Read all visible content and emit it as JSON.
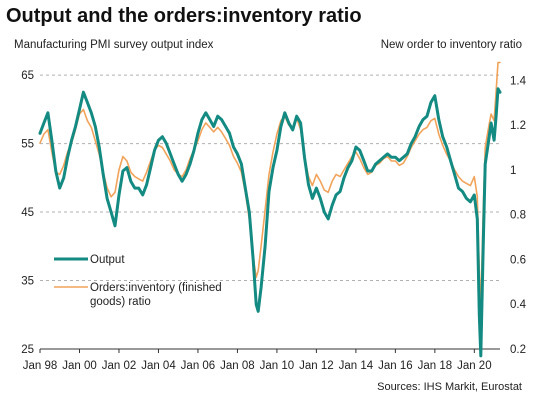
{
  "chart_data": {
    "type": "line",
    "title": "Output and the orders:inventory ratio",
    "ylabel_left": "Manufacturing PMI survey output index",
    "ylabel_right": "New order to inventory ratio",
    "source": "Sources: IHS Markit, Eurostat",
    "ylim_left": [
      25,
      67.5
    ],
    "ylim_right": [
      0.2,
      1.5
    ],
    "yticks_left": [
      "25",
      "35",
      "45",
      "55",
      "65"
    ],
    "yticks_right": [
      "0.2",
      "0.4",
      "0.6",
      "0.8",
      "1",
      "1.2",
      "1.4"
    ],
    "xlim": [
      1998.0,
      2021.3
    ],
    "xticks": [
      {
        "x": 1998,
        "label": "Jan 98"
      },
      {
        "x": 2000,
        "label": "Jan 00"
      },
      {
        "x": 2002,
        "label": "Jan 02"
      },
      {
        "x": 2004,
        "label": "Jan 04"
      },
      {
        "x": 2006,
        "label": "Jan 06"
      },
      {
        "x": 2008,
        "label": "Jan 08"
      },
      {
        "x": 2010,
        "label": "Jan 10"
      },
      {
        "x": 2012,
        "label": "Jan 12"
      },
      {
        "x": 2014,
        "label": "Jan 14"
      },
      {
        "x": 2016,
        "label": "Jan 16"
      },
      {
        "x": 2018,
        "label": "Jan 18"
      },
      {
        "x": 2020,
        "label": "Jan 20"
      }
    ],
    "grid": true,
    "legend": "left",
    "series": [
      {
        "name": "Output",
        "axis": "left",
        "color": "#138a82",
        "points": [
          [
            1998.0,
            56.5
          ],
          [
            1998.2,
            58.0
          ],
          [
            1998.4,
            59.5
          ],
          [
            1998.6,
            55.5
          ],
          [
            1998.8,
            51.0
          ],
          [
            1999.0,
            48.5
          ],
          [
            1999.2,
            50.0
          ],
          [
            1999.4,
            53.0
          ],
          [
            1999.6,
            55.5
          ],
          [
            1999.8,
            57.5
          ],
          [
            2000.0,
            60.0
          ],
          [
            2000.2,
            62.5
          ],
          [
            2000.4,
            61.0
          ],
          [
            2000.6,
            59.5
          ],
          [
            2000.8,
            57.5
          ],
          [
            2001.0,
            54.5
          ],
          [
            2001.2,
            50.5
          ],
          [
            2001.4,
            47.0
          ],
          [
            2001.6,
            45.0
          ],
          [
            2001.8,
            43.0
          ],
          [
            2002.0,
            47.5
          ],
          [
            2002.2,
            51.0
          ],
          [
            2002.4,
            51.5
          ],
          [
            2002.6,
            49.5
          ],
          [
            2002.8,
            48.5
          ],
          [
            2003.0,
            48.5
          ],
          [
            2003.2,
            47.5
          ],
          [
            2003.4,
            49.0
          ],
          [
            2003.6,
            51.5
          ],
          [
            2003.8,
            54.0
          ],
          [
            2004.0,
            55.5
          ],
          [
            2004.2,
            56.0
          ],
          [
            2004.4,
            55.0
          ],
          [
            2004.6,
            53.5
          ],
          [
            2004.8,
            52.0
          ],
          [
            2005.0,
            50.5
          ],
          [
            2005.2,
            49.5
          ],
          [
            2005.4,
            50.5
          ],
          [
            2005.6,
            52.0
          ],
          [
            2005.8,
            54.0
          ],
          [
            2006.0,
            56.5
          ],
          [
            2006.2,
            58.5
          ],
          [
            2006.4,
            59.5
          ],
          [
            2006.6,
            58.5
          ],
          [
            2006.8,
            57.5
          ],
          [
            2007.0,
            59.0
          ],
          [
            2007.2,
            58.5
          ],
          [
            2007.4,
            57.5
          ],
          [
            2007.6,
            56.5
          ],
          [
            2007.8,
            54.5
          ],
          [
            2008.0,
            53.5
          ],
          [
            2008.2,
            52.0
          ],
          [
            2008.4,
            48.5
          ],
          [
            2008.6,
            45.0
          ],
          [
            2008.8,
            38.0
          ],
          [
            2008.95,
            31.5
          ],
          [
            2009.05,
            30.5
          ],
          [
            2009.2,
            34.0
          ],
          [
            2009.4,
            40.0
          ],
          [
            2009.6,
            48.0
          ],
          [
            2009.8,
            51.5
          ],
          [
            2010.0,
            54.0
          ],
          [
            2010.2,
            57.5
          ],
          [
            2010.4,
            59.5
          ],
          [
            2010.6,
            58.0
          ],
          [
            2010.8,
            57.0
          ],
          [
            2011.0,
            59.0
          ],
          [
            2011.2,
            58.0
          ],
          [
            2011.4,
            53.0
          ],
          [
            2011.6,
            49.0
          ],
          [
            2011.8,
            47.0
          ],
          [
            2012.0,
            48.5
          ],
          [
            2012.2,
            47.0
          ],
          [
            2012.4,
            45.0
          ],
          [
            2012.6,
            44.0
          ],
          [
            2012.8,
            46.0
          ],
          [
            2013.0,
            47.5
          ],
          [
            2013.2,
            48.0
          ],
          [
            2013.4,
            50.0
          ],
          [
            2013.6,
            51.5
          ],
          [
            2013.8,
            52.5
          ],
          [
            2014.0,
            54.5
          ],
          [
            2014.2,
            54.0
          ],
          [
            2014.4,
            52.5
          ],
          [
            2014.6,
            51.0
          ],
          [
            2014.8,
            51.0
          ],
          [
            2015.0,
            52.0
          ],
          [
            2015.2,
            52.5
          ],
          [
            2015.4,
            53.0
          ],
          [
            2015.6,
            53.5
          ],
          [
            2015.8,
            53.0
          ],
          [
            2016.0,
            53.0
          ],
          [
            2016.2,
            52.5
          ],
          [
            2016.4,
            53.0
          ],
          [
            2016.6,
            53.5
          ],
          [
            2016.8,
            55.0
          ],
          [
            2017.0,
            56.0
          ],
          [
            2017.2,
            57.5
          ],
          [
            2017.4,
            58.5
          ],
          [
            2017.6,
            59.0
          ],
          [
            2017.8,
            61.0
          ],
          [
            2018.0,
            62.0
          ],
          [
            2018.2,
            58.5
          ],
          [
            2018.4,
            56.0
          ],
          [
            2018.6,
            54.5
          ],
          [
            2018.8,
            52.5
          ],
          [
            2019.0,
            50.5
          ],
          [
            2019.2,
            48.5
          ],
          [
            2019.4,
            48.0
          ],
          [
            2019.6,
            47.0
          ],
          [
            2019.8,
            46.5
          ],
          [
            2020.0,
            47.5
          ],
          [
            2020.15,
            44.0
          ],
          [
            2020.25,
            30.0
          ],
          [
            2020.33,
            24.0
          ],
          [
            2020.45,
            40.0
          ],
          [
            2020.55,
            52.0
          ],
          [
            2020.7,
            55.0
          ],
          [
            2020.85,
            58.0
          ],
          [
            2021.0,
            55.5
          ],
          [
            2021.1,
            59.0
          ],
          [
            2021.2,
            63.0
          ],
          [
            2021.3,
            62.5
          ]
        ]
      },
      {
        "name": "Orders:inventory (finished goods) ratio",
        "axis": "right",
        "color": "#f2a35a",
        "points": [
          [
            1998.0,
            1.12
          ],
          [
            1998.2,
            1.16
          ],
          [
            1998.4,
            1.18
          ],
          [
            1998.6,
            1.08
          ],
          [
            1998.8,
            0.99
          ],
          [
            1999.0,
            0.98
          ],
          [
            1999.2,
            1.02
          ],
          [
            1999.4,
            1.08
          ],
          [
            1999.6,
            1.12
          ],
          [
            1999.8,
            1.18
          ],
          [
            2000.0,
            1.25
          ],
          [
            2000.2,
            1.27
          ],
          [
            2000.4,
            1.22
          ],
          [
            2000.6,
            1.19
          ],
          [
            2000.8,
            1.13
          ],
          [
            2001.0,
            1.07
          ],
          [
            2001.2,
            0.99
          ],
          [
            2001.4,
            0.92
          ],
          [
            2001.6,
            0.88
          ],
          [
            2001.8,
            0.9
          ],
          [
            2002.0,
            1.0
          ],
          [
            2002.2,
            1.06
          ],
          [
            2002.4,
            1.04
          ],
          [
            2002.6,
            0.99
          ],
          [
            2002.8,
            0.97
          ],
          [
            2003.0,
            0.96
          ],
          [
            2003.2,
            0.95
          ],
          [
            2003.4,
            0.99
          ],
          [
            2003.6,
            1.04
          ],
          [
            2003.8,
            1.09
          ],
          [
            2004.0,
            1.11
          ],
          [
            2004.2,
            1.1
          ],
          [
            2004.4,
            1.07
          ],
          [
            2004.6,
            1.04
          ],
          [
            2004.8,
            1.0
          ],
          [
            2005.0,
            0.98
          ],
          [
            2005.2,
            0.97
          ],
          [
            2005.4,
            1.0
          ],
          [
            2005.6,
            1.05
          ],
          [
            2005.8,
            1.09
          ],
          [
            2006.0,
            1.13
          ],
          [
            2006.2,
            1.18
          ],
          [
            2006.4,
            1.21
          ],
          [
            2006.6,
            1.19
          ],
          [
            2006.8,
            1.17
          ],
          [
            2007.0,
            1.19
          ],
          [
            2007.2,
            1.17
          ],
          [
            2007.4,
            1.14
          ],
          [
            2007.6,
            1.11
          ],
          [
            2007.8,
            1.06
          ],
          [
            2008.0,
            1.03
          ],
          [
            2008.2,
            0.99
          ],
          [
            2008.4,
            0.9
          ],
          [
            2008.6,
            0.78
          ],
          [
            2008.8,
            0.61
          ],
          [
            2008.95,
            0.52
          ],
          [
            2009.05,
            0.55
          ],
          [
            2009.2,
            0.66
          ],
          [
            2009.4,
            0.82
          ],
          [
            2009.6,
            0.98
          ],
          [
            2009.8,
            1.08
          ],
          [
            2010.0,
            1.16
          ],
          [
            2010.2,
            1.22
          ],
          [
            2010.4,
            1.24
          ],
          [
            2010.6,
            1.2
          ],
          [
            2010.8,
            1.19
          ],
          [
            2011.0,
            1.23
          ],
          [
            2011.2,
            1.18
          ],
          [
            2011.4,
            1.06
          ],
          [
            2011.6,
            0.97
          ],
          [
            2011.8,
            0.93
          ],
          [
            2012.0,
            0.98
          ],
          [
            2012.2,
            0.95
          ],
          [
            2012.4,
            0.91
          ],
          [
            2012.6,
            0.9
          ],
          [
            2012.8,
            0.95
          ],
          [
            2013.0,
            0.98
          ],
          [
            2013.2,
            0.97
          ],
          [
            2013.4,
            1.0
          ],
          [
            2013.6,
            1.03
          ],
          [
            2013.8,
            1.06
          ],
          [
            2014.0,
            1.08
          ],
          [
            2014.2,
            1.05
          ],
          [
            2014.4,
            1.01
          ],
          [
            2014.6,
            0.98
          ],
          [
            2014.8,
            0.99
          ],
          [
            2015.0,
            1.02
          ],
          [
            2015.2,
            1.03
          ],
          [
            2015.4,
            1.05
          ],
          [
            2015.6,
            1.06
          ],
          [
            2015.8,
            1.04
          ],
          [
            2016.0,
            1.04
          ],
          [
            2016.2,
            1.02
          ],
          [
            2016.4,
            1.03
          ],
          [
            2016.6,
            1.06
          ],
          [
            2016.8,
            1.1
          ],
          [
            2017.0,
            1.13
          ],
          [
            2017.2,
            1.16
          ],
          [
            2017.4,
            1.18
          ],
          [
            2017.6,
            1.19
          ],
          [
            2017.8,
            1.22
          ],
          [
            2018.0,
            1.23
          ],
          [
            2018.2,
            1.16
          ],
          [
            2018.4,
            1.11
          ],
          [
            2018.6,
            1.07
          ],
          [
            2018.8,
            1.04
          ],
          [
            2019.0,
            1.0
          ],
          [
            2019.2,
            0.97
          ],
          [
            2019.4,
            0.95
          ],
          [
            2019.6,
            0.94
          ],
          [
            2019.8,
            0.93
          ],
          [
            2020.0,
            0.97
          ],
          [
            2020.15,
            0.88
          ],
          [
            2020.25,
            0.55
          ],
          [
            2020.33,
            0.38
          ],
          [
            2020.45,
            0.82
          ],
          [
            2020.55,
            1.1
          ],
          [
            2020.7,
            1.18
          ],
          [
            2020.85,
            1.25
          ],
          [
            2021.0,
            1.22
          ],
          [
            2021.1,
            1.35
          ],
          [
            2021.2,
            1.48
          ],
          [
            2021.3,
            1.48
          ]
        ]
      }
    ]
  }
}
